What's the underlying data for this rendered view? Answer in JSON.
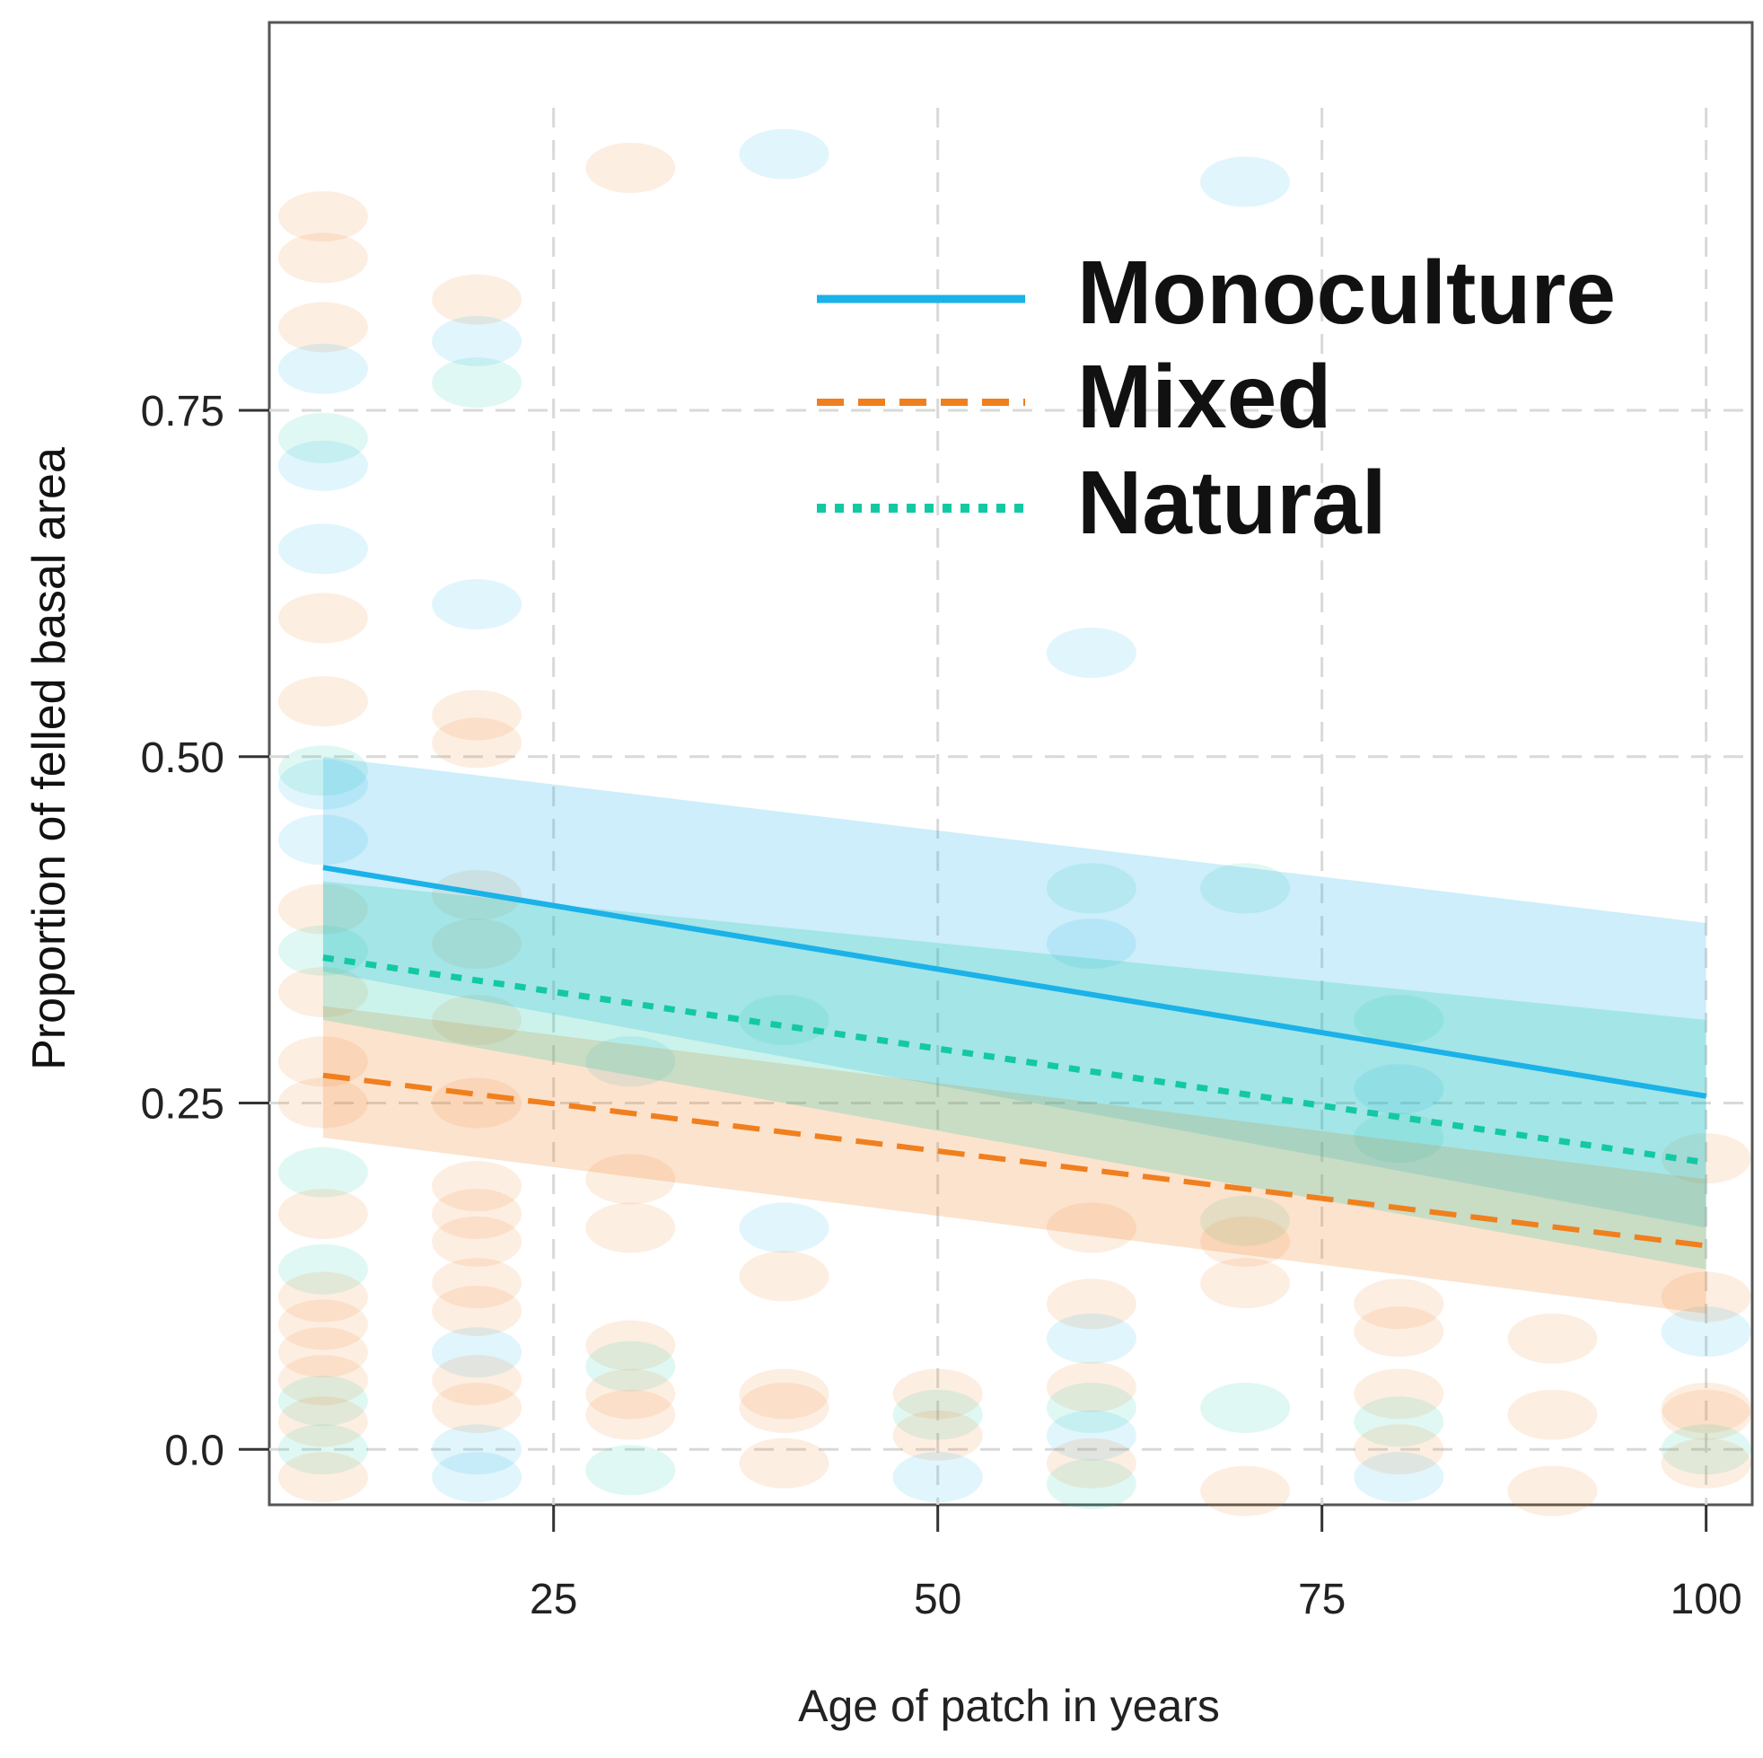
{
  "chart_data": {
    "type": "line",
    "title": "",
    "xlabel": "Age of patch in years",
    "ylabel": "Proportion of felled basal area",
    "xlim": [
      6.5,
      103
    ],
    "ylim": [
      -0.04,
      1.03
    ],
    "x_ticks": [
      25,
      50,
      75,
      100
    ],
    "x_tick_labels": [
      "25",
      "50",
      "75",
      "100"
    ],
    "y_ticks": [
      0.0,
      0.25,
      0.5,
      0.75
    ],
    "y_tick_labels": [
      "0.0",
      "0.25",
      "0.50",
      "0.75"
    ],
    "grid": true,
    "legend_position": "top-right",
    "series": [
      {
        "name": "Monoculture",
        "color": "#1ab2e8",
        "line_style": "solid",
        "x": [
          10,
          100
        ],
        "y": [
          0.42,
          0.255
        ],
        "ci_lower": [
          0.345,
          0.16
        ],
        "ci_upper": [
          0.5,
          0.38
        ]
      },
      {
        "name": "Mixed",
        "color": "#f07f1e",
        "line_style": "dashed",
        "x": [
          10,
          100
        ],
        "y": [
          0.27,
          0.147
        ],
        "ci_lower": [
          0.225,
          0.098
        ],
        "ci_upper": [
          0.32,
          0.195
        ]
      },
      {
        "name": "Natural",
        "color": "#12c9a4",
        "line_style": "dotted",
        "x": [
          10,
          100
        ],
        "y": [
          0.355,
          0.207
        ],
        "ci_lower": [
          0.31,
          0.13
        ],
        "ci_upper": [
          0.41,
          0.31
        ]
      }
    ],
    "points": [
      {
        "x": 10,
        "y": 0.89,
        "g": "Mixed"
      },
      {
        "x": 10,
        "y": 0.86,
        "g": "Mixed"
      },
      {
        "x": 10,
        "y": 0.81,
        "g": "Mixed"
      },
      {
        "x": 10,
        "y": 0.78,
        "g": "Monoculture"
      },
      {
        "x": 10,
        "y": 0.73,
        "g": "Natural"
      },
      {
        "x": 10,
        "y": 0.71,
        "g": "Monoculture"
      },
      {
        "x": 10,
        "y": 0.65,
        "g": "Monoculture"
      },
      {
        "x": 10,
        "y": 0.6,
        "g": "Mixed"
      },
      {
        "x": 10,
        "y": 0.54,
        "g": "Mixed"
      },
      {
        "x": 10,
        "y": 0.49,
        "g": "Natural"
      },
      {
        "x": 10,
        "y": 0.48,
        "g": "Monoculture"
      },
      {
        "x": 10,
        "y": 0.44,
        "g": "Monoculture"
      },
      {
        "x": 10,
        "y": 0.39,
        "g": "Mixed"
      },
      {
        "x": 10,
        "y": 0.36,
        "g": "Natural"
      },
      {
        "x": 10,
        "y": 0.33,
        "g": "Mixed"
      },
      {
        "x": 10,
        "y": 0.28,
        "g": "Mixed"
      },
      {
        "x": 10,
        "y": 0.25,
        "g": "Mixed"
      },
      {
        "x": 10,
        "y": 0.2,
        "g": "Natural"
      },
      {
        "x": 10,
        "y": 0.17,
        "g": "Mixed"
      },
      {
        "x": 10,
        "y": 0.13,
        "g": "Natural"
      },
      {
        "x": 10,
        "y": 0.11,
        "g": "Mixed"
      },
      {
        "x": 10,
        "y": 0.09,
        "g": "Mixed"
      },
      {
        "x": 10,
        "y": 0.07,
        "g": "Mixed"
      },
      {
        "x": 10,
        "y": 0.05,
        "g": "Mixed"
      },
      {
        "x": 10,
        "y": 0.035,
        "g": "Natural"
      },
      {
        "x": 10,
        "y": 0.02,
        "g": "Mixed"
      },
      {
        "x": 10,
        "y": 0.0,
        "g": "Natural"
      },
      {
        "x": 10,
        "y": -0.02,
        "g": "Mixed"
      },
      {
        "x": 20,
        "y": 0.83,
        "g": "Mixed"
      },
      {
        "x": 20,
        "y": 0.8,
        "g": "Monoculture"
      },
      {
        "x": 20,
        "y": 0.77,
        "g": "Natural"
      },
      {
        "x": 20,
        "y": 0.61,
        "g": "Monoculture"
      },
      {
        "x": 20,
        "y": 0.53,
        "g": "Mixed"
      },
      {
        "x": 20,
        "y": 0.51,
        "g": "Mixed"
      },
      {
        "x": 20,
        "y": 0.4,
        "g": "Mixed"
      },
      {
        "x": 20,
        "y": 0.365,
        "g": "Mixed"
      },
      {
        "x": 20,
        "y": 0.31,
        "g": "Mixed"
      },
      {
        "x": 20,
        "y": 0.25,
        "g": "Mixed"
      },
      {
        "x": 20,
        "y": 0.19,
        "g": "Mixed"
      },
      {
        "x": 20,
        "y": 0.17,
        "g": "Mixed"
      },
      {
        "x": 20,
        "y": 0.15,
        "g": "Mixed"
      },
      {
        "x": 20,
        "y": 0.12,
        "g": "Mixed"
      },
      {
        "x": 20,
        "y": 0.1,
        "g": "Mixed"
      },
      {
        "x": 20,
        "y": 0.07,
        "g": "Monoculture"
      },
      {
        "x": 20,
        "y": 0.05,
        "g": "Mixed"
      },
      {
        "x": 20,
        "y": 0.03,
        "g": "Mixed"
      },
      {
        "x": 20,
        "y": 0.0,
        "g": "Monoculture"
      },
      {
        "x": 20,
        "y": -0.02,
        "g": "Monoculture"
      },
      {
        "x": 30,
        "y": 0.925,
        "g": "Mixed"
      },
      {
        "x": 30,
        "y": 0.28,
        "g": "Monoculture"
      },
      {
        "x": 30,
        "y": 0.195,
        "g": "Mixed"
      },
      {
        "x": 30,
        "y": 0.16,
        "g": "Mixed"
      },
      {
        "x": 30,
        "y": 0.075,
        "g": "Mixed"
      },
      {
        "x": 30,
        "y": 0.06,
        "g": "Natural"
      },
      {
        "x": 30,
        "y": 0.04,
        "g": "Mixed"
      },
      {
        "x": 30,
        "y": 0.025,
        "g": "Mixed"
      },
      {
        "x": 30,
        "y": -0.015,
        "g": "Natural"
      },
      {
        "x": 40,
        "y": 0.935,
        "g": "Monoculture"
      },
      {
        "x": 40,
        "y": 0.31,
        "g": "Natural"
      },
      {
        "x": 40,
        "y": 0.16,
        "g": "Monoculture"
      },
      {
        "x": 40,
        "y": 0.125,
        "g": "Mixed"
      },
      {
        "x": 40,
        "y": 0.04,
        "g": "Mixed"
      },
      {
        "x": 40,
        "y": 0.03,
        "g": "Mixed"
      },
      {
        "x": 40,
        "y": -0.01,
        "g": "Mixed"
      },
      {
        "x": 50,
        "y": 0.04,
        "g": "Mixed"
      },
      {
        "x": 50,
        "y": 0.025,
        "g": "Natural"
      },
      {
        "x": 50,
        "y": 0.01,
        "g": "Mixed"
      },
      {
        "x": 50,
        "y": -0.02,
        "g": "Monoculture"
      },
      {
        "x": 60,
        "y": 0.575,
        "g": "Monoculture"
      },
      {
        "x": 60,
        "y": 0.405,
        "g": "Natural"
      },
      {
        "x": 60,
        "y": 0.365,
        "g": "Monoculture"
      },
      {
        "x": 60,
        "y": 0.16,
        "g": "Mixed"
      },
      {
        "x": 60,
        "y": 0.105,
        "g": "Mixed"
      },
      {
        "x": 60,
        "y": 0.08,
        "g": "Monoculture"
      },
      {
        "x": 60,
        "y": 0.045,
        "g": "Mixed"
      },
      {
        "x": 60,
        "y": 0.03,
        "g": "Natural"
      },
      {
        "x": 60,
        "y": 0.01,
        "g": "Monoculture"
      },
      {
        "x": 60,
        "y": -0.01,
        "g": "Mixed"
      },
      {
        "x": 60,
        "y": -0.025,
        "g": "Natural"
      },
      {
        "x": 70,
        "y": 0.915,
        "g": "Monoculture"
      },
      {
        "x": 70,
        "y": 0.405,
        "g": "Natural"
      },
      {
        "x": 70,
        "y": 0.165,
        "g": "Natural"
      },
      {
        "x": 70,
        "y": 0.15,
        "g": "Mixed"
      },
      {
        "x": 70,
        "y": 0.12,
        "g": "Mixed"
      },
      {
        "x": 70,
        "y": 0.03,
        "g": "Natural"
      },
      {
        "x": 70,
        "y": -0.03,
        "g": "Mixed"
      },
      {
        "x": 80,
        "y": 0.31,
        "g": "Natural"
      },
      {
        "x": 80,
        "y": 0.26,
        "g": "Monoculture"
      },
      {
        "x": 80,
        "y": 0.225,
        "g": "Natural"
      },
      {
        "x": 80,
        "y": 0.105,
        "g": "Mixed"
      },
      {
        "x": 80,
        "y": 0.085,
        "g": "Mixed"
      },
      {
        "x": 80,
        "y": 0.04,
        "g": "Mixed"
      },
      {
        "x": 80,
        "y": 0.02,
        "g": "Natural"
      },
      {
        "x": 80,
        "y": 0.0,
        "g": "Mixed"
      },
      {
        "x": 80,
        "y": -0.02,
        "g": "Monoculture"
      },
      {
        "x": 90,
        "y": 0.08,
        "g": "Mixed"
      },
      {
        "x": 90,
        "y": 0.025,
        "g": "Mixed"
      },
      {
        "x": 90,
        "y": -0.03,
        "g": "Mixed"
      },
      {
        "x": 100,
        "y": 0.21,
        "g": "Mixed"
      },
      {
        "x": 100,
        "y": 0.11,
        "g": "Mixed"
      },
      {
        "x": 100,
        "y": 0.085,
        "g": "Monoculture"
      },
      {
        "x": 100,
        "y": 0.03,
        "g": "Mixed"
      },
      {
        "x": 100,
        "y": 0.025,
        "g": "Mixed"
      },
      {
        "x": 100,
        "y": 0.0,
        "g": "Natural"
      },
      {
        "x": 100,
        "y": -0.01,
        "g": "Mixed"
      }
    ]
  }
}
